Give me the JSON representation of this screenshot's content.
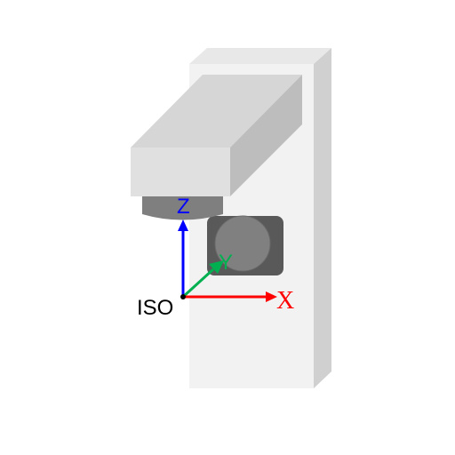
{
  "view": {
    "label": "ISO"
  },
  "axes": {
    "x": {
      "label": "X",
      "color": "#ff0000"
    },
    "y": {
      "label": "Y",
      "color": "#00b050"
    },
    "z": {
      "label": "Z",
      "color": "#0000ff"
    }
  },
  "colors": {
    "wall_front": "#f2f2f2",
    "wall_top": "#e8e8e8",
    "wall_side": "#d0d0d0",
    "head_front": "#e0e0e0",
    "head_top": "#d6d6d6",
    "head_side": "#bdbdbd",
    "spindle": "#7f7f7f",
    "spindle_underside": "#6e6e6e",
    "part_frame": "#595959",
    "part_disc": "#808080"
  }
}
